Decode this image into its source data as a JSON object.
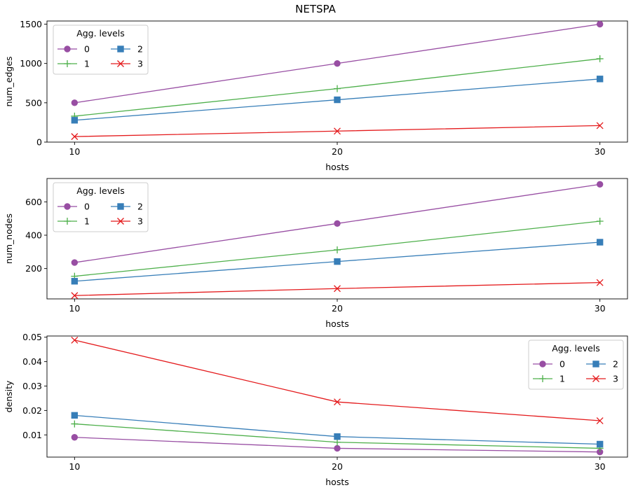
{
  "figure": {
    "title": "NETSPA"
  },
  "colors": {
    "level_0": "#984ea3",
    "level_1": "#4daf4a",
    "level_2": "#377eb8",
    "level_3": "#e41a1c"
  },
  "chart_data": [
    {
      "type": "line",
      "title": "",
      "xlabel": "hosts",
      "ylabel": "num_edges",
      "x": [
        10,
        20,
        30
      ],
      "xticks": [
        10,
        20,
        30
      ],
      "yticks": [
        0,
        500,
        1000,
        1500
      ],
      "ylim": [
        0,
        1540
      ],
      "legend": {
        "title": "Agg. levels",
        "placement": "top-left",
        "columns": 2
      },
      "series": [
        {
          "name": "0",
          "marker": "circle",
          "color": "#984ea3",
          "values": [
            500,
            1000,
            1500
          ]
        },
        {
          "name": "1",
          "marker": "plus",
          "color": "#4daf4a",
          "values": [
            330,
            680,
            1060
          ]
        },
        {
          "name": "2",
          "marker": "square",
          "color": "#377eb8",
          "values": [
            278,
            538,
            803
          ]
        },
        {
          "name": "3",
          "marker": "x",
          "color": "#e41a1c",
          "values": [
            70,
            140,
            210
          ]
        }
      ]
    },
    {
      "type": "line",
      "title": "",
      "xlabel": "hosts",
      "ylabel": "num_nodes",
      "x": [
        10,
        20,
        30
      ],
      "xticks": [
        10,
        20,
        30
      ],
      "yticks": [
        200,
        400,
        600
      ],
      "ylim": [
        18,
        740
      ],
      "legend": {
        "title": "Agg. levels",
        "placement": "top-left",
        "columns": 2
      },
      "series": [
        {
          "name": "0",
          "marker": "circle",
          "color": "#984ea3",
          "values": [
            236,
            470,
            705
          ]
        },
        {
          "name": "1",
          "marker": "plus",
          "color": "#4daf4a",
          "values": [
            154,
            312,
            484
          ]
        },
        {
          "name": "2",
          "marker": "square",
          "color": "#377eb8",
          "values": [
            124,
            242,
            358
          ]
        },
        {
          "name": "3",
          "marker": "x",
          "color": "#e41a1c",
          "values": [
            38,
            80,
            116
          ]
        }
      ]
    },
    {
      "type": "line",
      "title": "",
      "xlabel": "hosts",
      "ylabel": "density",
      "x": [
        10,
        20,
        30
      ],
      "xticks": [
        10,
        20,
        30
      ],
      "yticks": [
        0.01,
        0.02,
        0.03,
        0.04,
        0.05
      ],
      "ylim": [
        0.0009,
        0.0505
      ],
      "legend": {
        "title": "Agg. levels",
        "placement": "top-right",
        "columns": 2
      },
      "series": [
        {
          "name": "0",
          "marker": "circle",
          "color": "#984ea3",
          "values": [
            0.009,
            0.0045,
            0.003
          ]
        },
        {
          "name": "1",
          "marker": "plus",
          "color": "#4daf4a",
          "values": [
            0.0145,
            0.007,
            0.0045
          ]
        },
        {
          "name": "2",
          "marker": "square",
          "color": "#377eb8",
          "values": [
            0.018,
            0.0093,
            0.0062
          ]
        },
        {
          "name": "3",
          "marker": "x",
          "color": "#e41a1c",
          "values": [
            0.0488,
            0.0235,
            0.0158
          ]
        }
      ]
    }
  ]
}
